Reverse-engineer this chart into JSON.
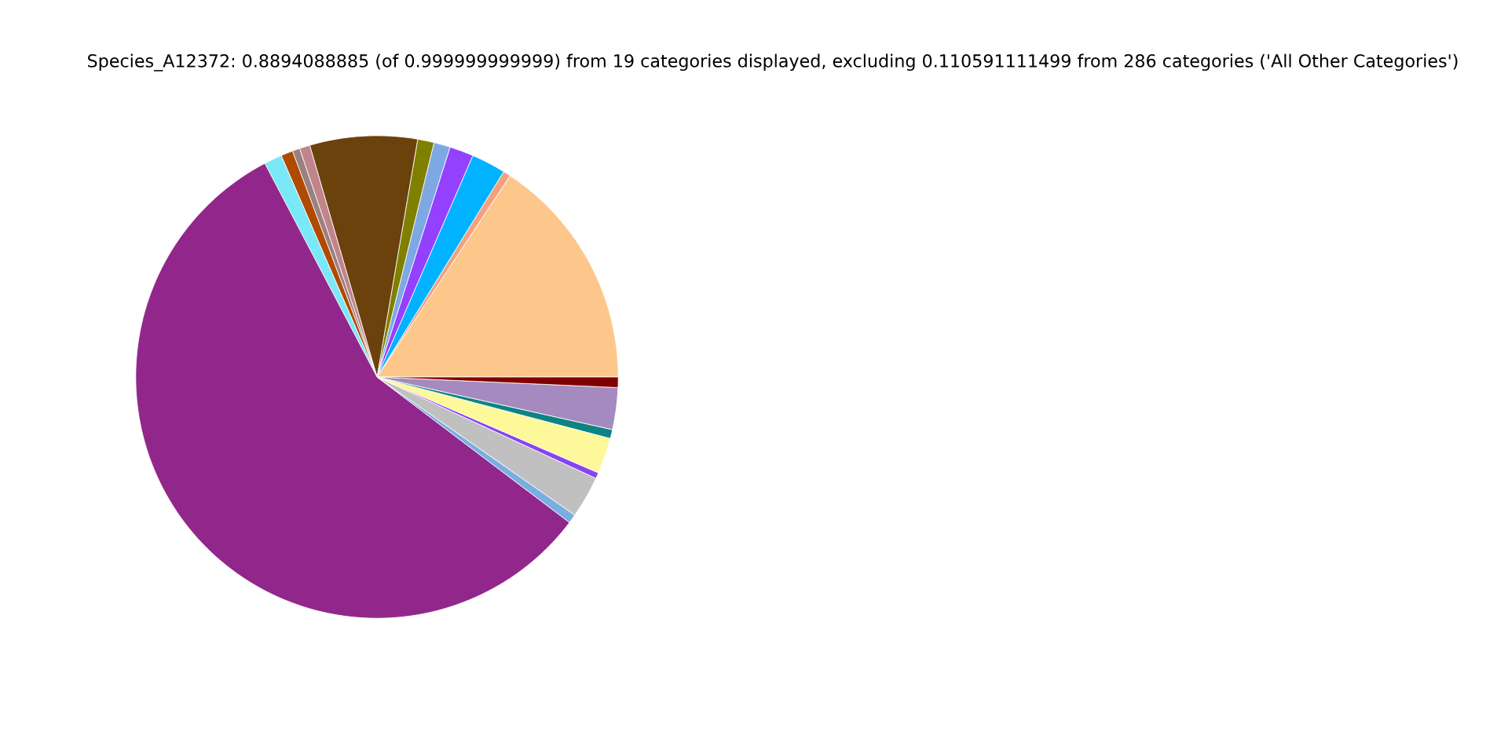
{
  "chart_data": {
    "type": "pie",
    "title": "Species_A12372: 0.8894088885 (of 0.999999999999) from 19 categories displayed, excluding 0.110591111499 from 286 categories ('All Other Categories')",
    "categories": [
      null,
      null,
      null,
      null,
      null,
      null,
      null,
      null,
      null,
      null,
      null,
      null,
      null,
      null,
      null,
      null,
      null,
      null,
      null
    ],
    "values": [
      15.7,
      0.5,
      2.3,
      1.6,
      1.1,
      1.1,
      7.2,
      0.7,
      0.5,
      0.8,
      1.2,
      57.0,
      0.6,
      2.8,
      0.4,
      2.4,
      0.6,
      2.8,
      0.7
    ],
    "colors": [
      "#fdc78b",
      "#f4a07e",
      "#00b2ff",
      "#9340ff",
      "#7ea8e3",
      "#7f7f00",
      "#6b410c",
      "#c0858a",
      "#9a8080",
      "#b04a00",
      "#7ae8f7",
      "#92278b",
      "#7aaee0",
      "#c0c0c0",
      "#8843f2",
      "#fdf89a",
      "#0d8383",
      "#a48abe",
      "#800000"
    ]
  }
}
